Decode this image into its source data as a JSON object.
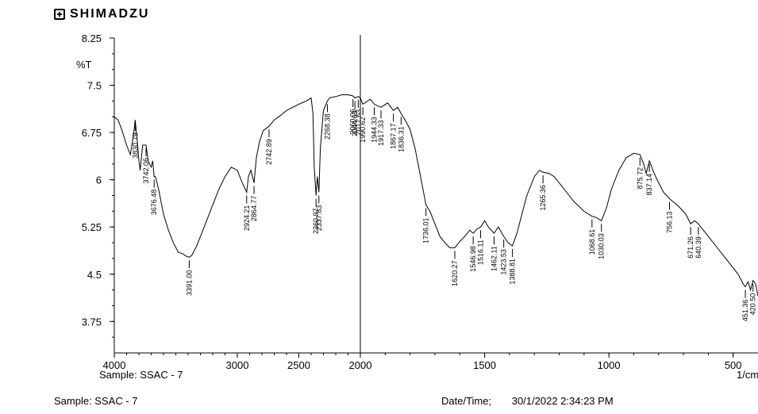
{
  "brand": {
    "name": "SHIMADZU",
    "logo_icon": "shimadzu-logo-icon"
  },
  "footer": {
    "sample_label": "Sample: SSAC - 7",
    "date_label": "Date/Time;",
    "date_value": "30/1/2022 2:34:23 PM"
  },
  "chart_data": {
    "type": "line",
    "title": "",
    "ylabel": "%T",
    "xlabel": "1/cm",
    "sample_caption": "Sample:  SSAC - 7",
    "xlim": [
      4000,
      400
    ],
    "ylim": [
      3.25,
      8.25
    ],
    "x_reversed": true,
    "grid": false,
    "y_ticks": [
      "8.25",
      "7.5",
      "6.75",
      "6",
      "5.25",
      "4.5",
      "3.75"
    ],
    "x_ticks": [
      "4000",
      "3000",
      "2500",
      "2000",
      "1500",
      "1000",
      "500"
    ],
    "cursor_x": 2000,
    "series": [
      {
        "x": [
          4000,
          3970,
          3940,
          3900,
          3870,
          3845,
          3830,
          3812,
          3800,
          3790,
          3770,
          3742,
          3725,
          3700,
          3688,
          3676,
          3665,
          3640,
          3600,
          3560,
          3520,
          3480,
          3440,
          3410,
          3391,
          3370,
          3330,
          3290,
          3250,
          3200,
          3150,
          3100,
          3050,
          3000,
          2960,
          2935,
          2924,
          2910,
          2890,
          2864,
          2845,
          2820,
          2790,
          2742,
          2700,
          2650,
          2600,
          2550,
          2500,
          2440,
          2400,
          2385,
          2375,
          2360,
          2350,
          2337,
          2325,
          2300,
          2268,
          2250,
          2200,
          2150,
          2100,
          2060,
          2044,
          2017,
          2000,
          1990,
          1960,
          1944,
          1917,
          1890,
          1867,
          1850,
          1836,
          1820,
          1800,
          1780,
          1760,
          1736,
          1720,
          1700,
          1680,
          1660,
          1640,
          1620,
          1600,
          1580,
          1560,
          1546,
          1530,
          1516,
          1500,
          1485,
          1462,
          1445,
          1423,
          1405,
          1388,
          1370,
          1350,
          1330,
          1300,
          1280,
          1265,
          1240,
          1220,
          1200,
          1170,
          1140,
          1100,
          1068,
          1050,
          1030,
          1010,
          990,
          960,
          930,
          900,
          875,
          860,
          850,
          837,
          820,
          800,
          780,
          756,
          720,
          690,
          671,
          655,
          640,
          620,
          600,
          570,
          540,
          510,
          480,
          460,
          451,
          440,
          430,
          420,
          410,
          400
        ],
        "y": [
          7.0,
          6.95,
          6.8,
          6.55,
          6.4,
          6.7,
          6.95,
          6.6,
          6.3,
          6.15,
          6.55,
          6.55,
          6.3,
          6.2,
          6.3,
          6.05,
          6.05,
          5.85,
          5.45,
          5.2,
          5.0,
          4.85,
          4.82,
          4.78,
          4.77,
          4.8,
          4.95,
          5.15,
          5.35,
          5.6,
          5.85,
          6.05,
          6.2,
          6.15,
          5.95,
          5.85,
          5.8,
          6.05,
          6.15,
          5.95,
          6.35,
          6.6,
          6.78,
          6.85,
          6.95,
          7.02,
          7.1,
          7.15,
          7.2,
          7.25,
          7.3,
          7.05,
          6.2,
          5.75,
          6.05,
          5.8,
          6.5,
          7.1,
          7.25,
          7.3,
          7.32,
          7.35,
          7.35,
          7.33,
          7.3,
          7.32,
          7.3,
          7.2,
          7.28,
          7.2,
          7.15,
          7.22,
          7.1,
          7.15,
          7.05,
          6.95,
          6.8,
          6.5,
          6.1,
          5.6,
          5.5,
          5.3,
          5.1,
          5.0,
          4.92,
          4.92,
          5.02,
          5.1,
          5.2,
          5.15,
          5.22,
          5.25,
          5.35,
          5.25,
          5.15,
          5.25,
          5.1,
          5.0,
          4.95,
          5.15,
          5.45,
          5.75,
          6.05,
          6.15,
          6.12,
          6.1,
          6.05,
          5.95,
          5.8,
          5.65,
          5.5,
          5.42,
          5.4,
          5.35,
          5.55,
          5.85,
          6.15,
          6.35,
          6.42,
          6.4,
          6.25,
          6.1,
          6.3,
          6.12,
          5.95,
          5.8,
          5.7,
          5.58,
          5.45,
          5.3,
          5.35,
          5.3,
          5.2,
          5.1,
          4.95,
          4.8,
          4.65,
          4.5,
          4.35,
          4.3,
          4.38,
          4.25,
          4.4,
          4.35,
          4.15
        ]
      }
    ],
    "peak_labels": [
      {
        "x": 3830,
        "text": "3830.79"
      },
      {
        "x": 3742,
        "text": "3742.06"
      },
      {
        "x": 3676,
        "text": "3676.48"
      },
      {
        "x": 3391,
        "text": "3391.00"
      },
      {
        "x": 2924,
        "text": "2924.21"
      },
      {
        "x": 2864,
        "text": "2864.77"
      },
      {
        "x": 2742,
        "text": "2742.89"
      },
      {
        "x": 2360,
        "text": "2360.97"
      },
      {
        "x": 2337,
        "text": "2337.83"
      },
      {
        "x": 2268,
        "text": "2268.38"
      },
      {
        "x": 2060,
        "text": "2060.06"
      },
      {
        "x": 2044,
        "text": "2044.63"
      },
      {
        "x": 2017,
        "text": "2017.63"
      },
      {
        "x": 1990,
        "text": "1990.62"
      },
      {
        "x": 1944,
        "text": "1944.33"
      },
      {
        "x": 1917,
        "text": "1917.33"
      },
      {
        "x": 1867,
        "text": "1867.17"
      },
      {
        "x": 1836,
        "text": "1836.31"
      },
      {
        "x": 1736,
        "text": "1736.01"
      },
      {
        "x": 1620,
        "text": "1620.27"
      },
      {
        "x": 1546,
        "text": "1546.98"
      },
      {
        "x": 1516,
        "text": "1516.11"
      },
      {
        "x": 1462,
        "text": "1462.11"
      },
      {
        "x": 1423,
        "text": "1423.53"
      },
      {
        "x": 1388,
        "text": "1388.81"
      },
      {
        "x": 1265,
        "text": "1265.36"
      },
      {
        "x": 1068,
        "text": "1068.61"
      },
      {
        "x": 1030,
        "text": "1030.03"
      },
      {
        "x": 875,
        "text": "875.72"
      },
      {
        "x": 837,
        "text": "837.14"
      },
      {
        "x": 756,
        "text": "756.13"
      },
      {
        "x": 671,
        "text": "671.26"
      },
      {
        "x": 640,
        "text": "640.39"
      },
      {
        "x": 451,
        "text": "451.36"
      },
      {
        "x": 420,
        "text": "420.50"
      }
    ]
  }
}
